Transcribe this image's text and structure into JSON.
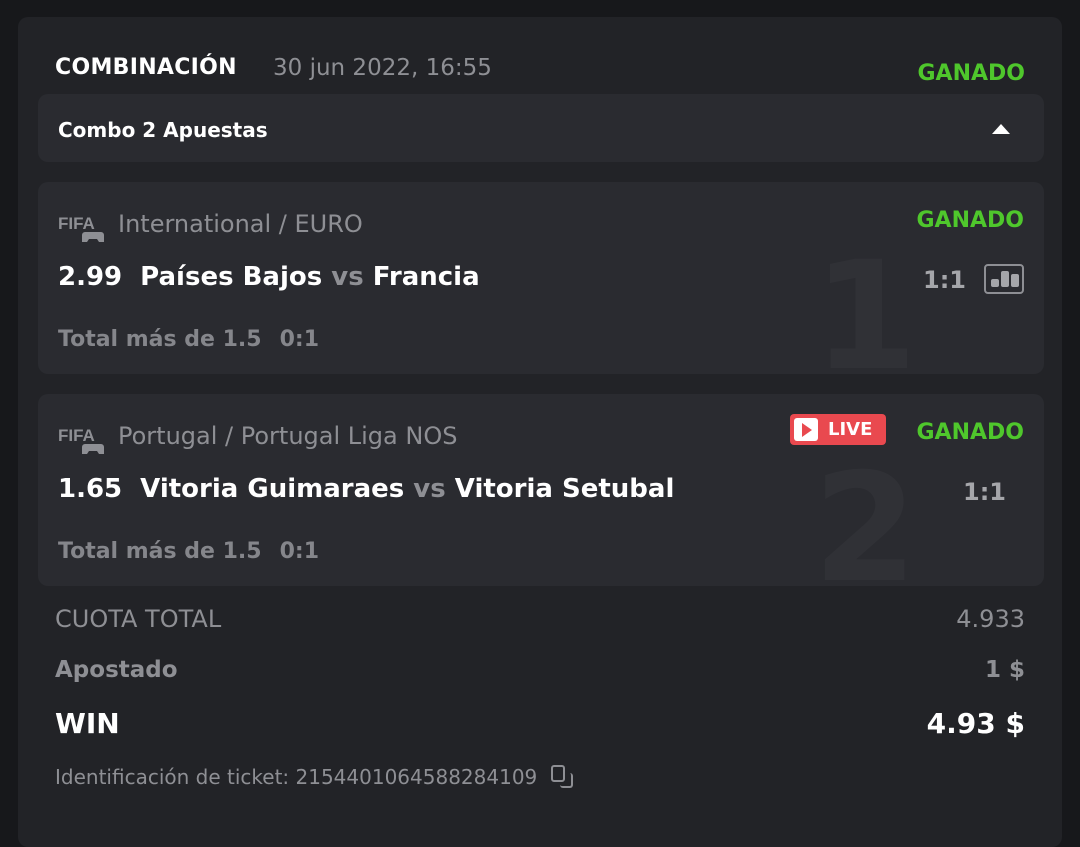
{
  "header": {
    "title": "COMBINACIÓN",
    "date": "30 jun 2022, 16:55",
    "status": "GANADO"
  },
  "combo": {
    "label": "Combo 2 Apuestas",
    "toggle_icon": "caret-up-icon"
  },
  "colors": {
    "win": "#4fc72c",
    "live": "#e9494f"
  },
  "matches": [
    {
      "index": "1",
      "sport_icon": "fifa-icon",
      "league": "International / EURO",
      "odds": "2.99",
      "home": "Países Bajos",
      "vs": "vs",
      "away": "Francia",
      "status": "GANADO",
      "score": "1:1",
      "market": "Total más de 1.5",
      "market_score": "0:1",
      "live": false,
      "stats_icon": "bar-chart-icon"
    },
    {
      "index": "2",
      "sport_icon": "fifa-icon",
      "league": "Portugal / Portugal Liga NOS",
      "odds": "1.65",
      "home": "Vitoria Guimaraes",
      "vs": "vs",
      "away": "Vitoria Setubal",
      "status": "GANADO",
      "score": "1:1",
      "market": "Total más de 1.5",
      "market_score": "0:1",
      "live": true,
      "live_label": "LIVE"
    }
  ],
  "summary": {
    "total_odds_label": "CUOTA TOTAL",
    "total_odds": "4.933",
    "stake_label": "Apostado",
    "stake": "1 $",
    "win_label": "WIN",
    "win": "4.93 $",
    "ticket_label": "Identificación de ticket: 215440106458828410​9"
  }
}
